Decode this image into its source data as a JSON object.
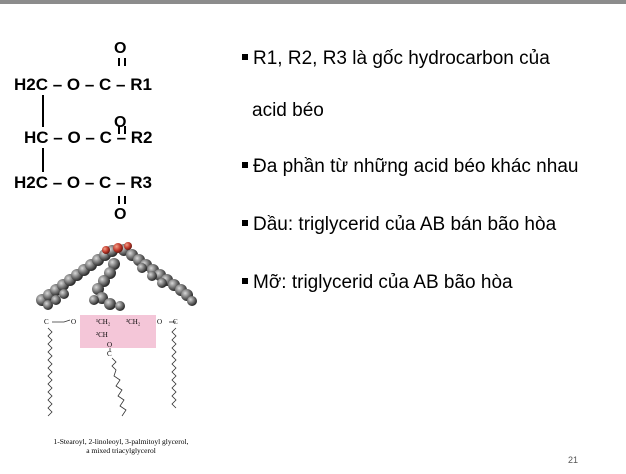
{
  "slide": {
    "page_number": "21"
  },
  "formula": {
    "row1": "H2C – O – C – R1",
    "row2": "HC – O – C – R2",
    "row3": "H2C – O – C – R3",
    "oxygen": "O"
  },
  "bullets": [
    {
      "text": "R1, R2, R3 là gốc hydrocarbon của",
      "continuation": "acid béo"
    },
    {
      "text": "Đa phần từ những acid béo khác nhau"
    },
    {
      "text": "Dầu: triglycerid của AB bán bão hòa"
    },
    {
      "text": "Mỡ: triglycerid của AB bão hòa"
    }
  ],
  "structure": {
    "labels": [
      "¹CH₂",
      "²CH",
      "³CH₂",
      "O",
      "C"
    ],
    "caption_line1": "1-Stearoyl, 2-linoleoyl, 3-palmitoyl glycerol,",
    "caption_line2": "a mixed triacylglycerol"
  },
  "colors": {
    "topbar": "#8c8c8c",
    "highlight": "#f4c6d8",
    "atom": "#6e6e6e",
    "oxygen_atom": "#c0392b"
  }
}
